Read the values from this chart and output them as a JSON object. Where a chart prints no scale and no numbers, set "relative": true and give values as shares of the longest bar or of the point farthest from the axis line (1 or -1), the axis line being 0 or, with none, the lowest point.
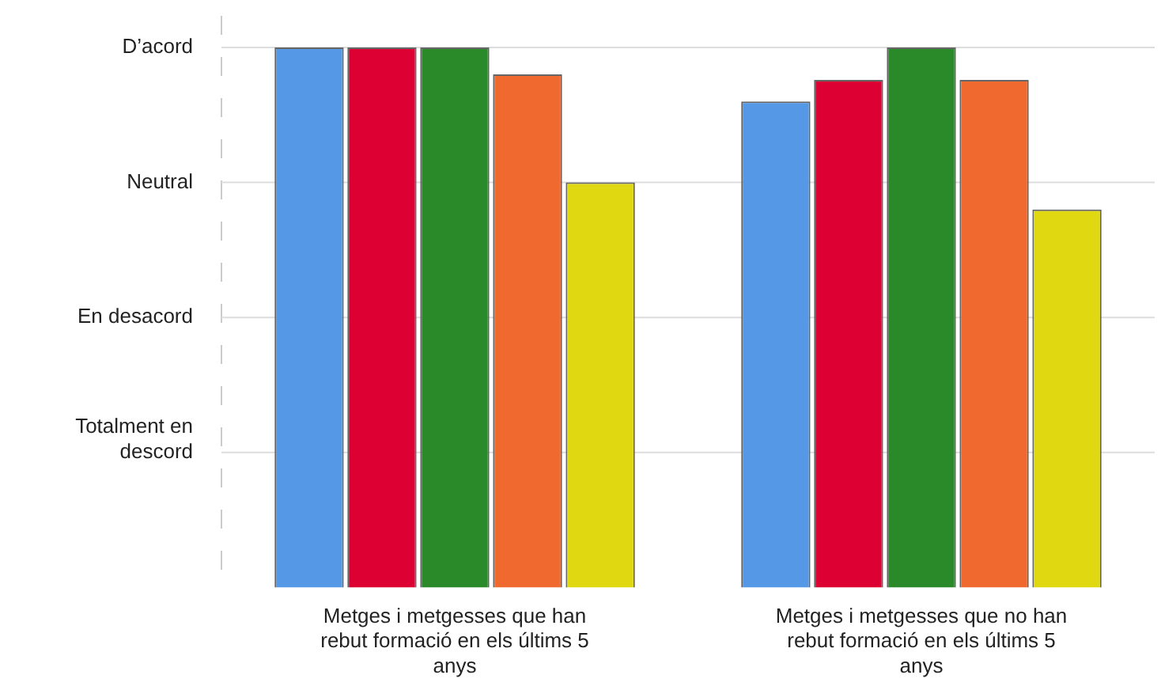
{
  "chart_data": {
    "type": "bar",
    "relative": true,
    "categories": [
      "Metges i metgesses que han rebut formació en els últims 5 anys",
      "Metges i metgesses que no han rebut formació en els últims 5 anys"
    ],
    "series": [
      {
        "color": "#5599e6",
        "values": [
          1,
          0.9
        ]
      },
      {
        "color": "#dc0033",
        "values": [
          1,
          0.94
        ]
      },
      {
        "color": "#2a8a2a",
        "values": [
          1,
          1
        ]
      },
      {
        "color": "#f06a30",
        "values": [
          0.95,
          0.94
        ]
      },
      {
        "color": "#e0d810",
        "values": [
          0.75,
          0.7
        ]
      }
    ],
    "ref_lines": [
      {
        "axis": "y",
        "value": 0.25,
        "label": "Totalment en descord",
        "color": "#dddddd"
      },
      {
        "axis": "y",
        "value": 0.5,
        "label": "En desacord",
        "color": "#dddddd"
      },
      {
        "axis": "y",
        "value": 0.75,
        "label": "Neutral",
        "color": "#dddddd"
      },
      {
        "axis": "y",
        "value": 1,
        "label": "D’acord",
        "color": "#dddddd"
      }
    ],
    "legend": false
  }
}
